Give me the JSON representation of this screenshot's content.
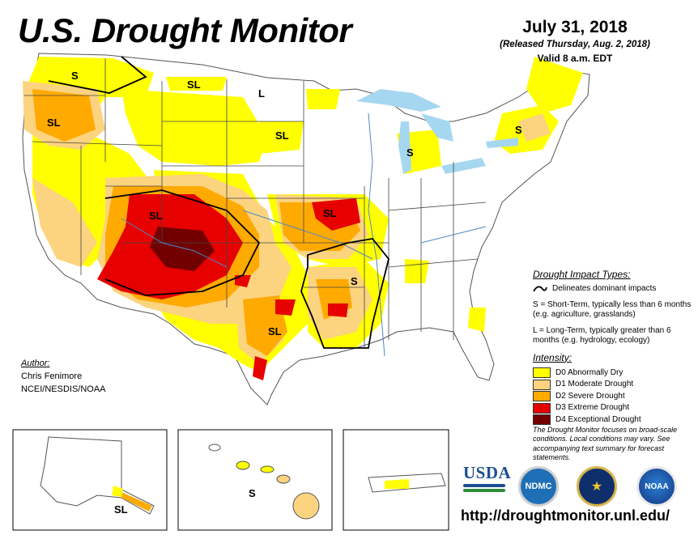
{
  "header": {
    "title": "U.S. Drought Monitor",
    "date": "July 31, 2018",
    "released": "(Released Thursday, Aug. 2, 2018)",
    "valid": "Valid 8 a.m. EDT"
  },
  "legend": {
    "impact_heading": "Drought Impact Types:",
    "impact_line": "Delineates dominant impacts",
    "short_term": "S = Short-Term, typically less than 6 months (e.g. agriculture, grasslands)",
    "long_term": "L = Long-Term, typically greater than 6 months (e.g. hydrology, ecology)",
    "intensity_heading": "Intensity:",
    "categories": [
      {
        "label": "D0 Abnormally Dry",
        "color": "#ffff00"
      },
      {
        "label": "D1 Moderate Drought",
        "color": "#fcd37f"
      },
      {
        "label": "D2 Severe Drought",
        "color": "#ffaa00"
      },
      {
        "label": "D3 Extreme Drought",
        "color": "#e60000"
      },
      {
        "label": "D4 Exceptional Drought",
        "color": "#730000"
      }
    ]
  },
  "note": "The Drought Monitor focuses on broad-scale conditions. Local conditions may vary. See accompanying text summary for forecast statements.",
  "author": {
    "heading": "Author:",
    "name": "Chris Fenimore",
    "org": "NCEI/NESDIS/NOAA"
  },
  "map_labels": {
    "wa": "S",
    "or": "SL",
    "mt": "SL",
    "nd": "L",
    "sd": "SL",
    "co": "SL",
    "mo": "SL",
    "mi": "S",
    "ny": "S",
    "ar": "S",
    "tx": "SL",
    "ak": "SL",
    "hi": "S"
  },
  "logos": {
    "usda": "USDA",
    "ndmc": "NDMC",
    "doc": "★",
    "noaa": "NOAA"
  },
  "url": "http://droughtmonitor.unl.edu/"
}
